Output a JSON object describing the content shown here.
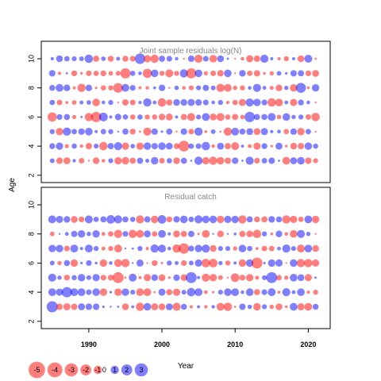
{
  "chart_data": {
    "type": "scatter",
    "encoding": "bubble",
    "xlabel": "Year",
    "ylabel": "Age",
    "x_ticks": [
      1990,
      2000,
      2010,
      2020
    ],
    "y_ticks": [
      2,
      4,
      6,
      8,
      10
    ],
    "colors": {
      "positive": "#0000ff",
      "negative": "#ff0000"
    },
    "panels": [
      {
        "title": "Joint sample residuals log(N)",
        "xlim": [
          1983.5,
          2023
        ],
        "ylim": [
          1.5,
          11.2
        ],
        "ages": [
          3,
          4,
          5,
          6,
          7,
          8,
          9,
          10
        ],
        "years": [
          1985,
          2021
        ]
      },
      {
        "title": "Residual catch",
        "xlim": [
          1983.5,
          2023
        ],
        "ylim": [
          1.5,
          11.2
        ],
        "ages": [
          3,
          4,
          5,
          6,
          7,
          8,
          9
        ],
        "years": [
          1985,
          2021
        ]
      }
    ],
    "legend": {
      "values": [
        -5,
        -4,
        -3,
        -2,
        -1,
        0,
        1,
        2,
        3
      ],
      "labels": [
        "-5",
        "-4",
        "-3",
        "-2",
        "-1",
        "0",
        "1",
        "2",
        "3"
      ]
    }
  }
}
